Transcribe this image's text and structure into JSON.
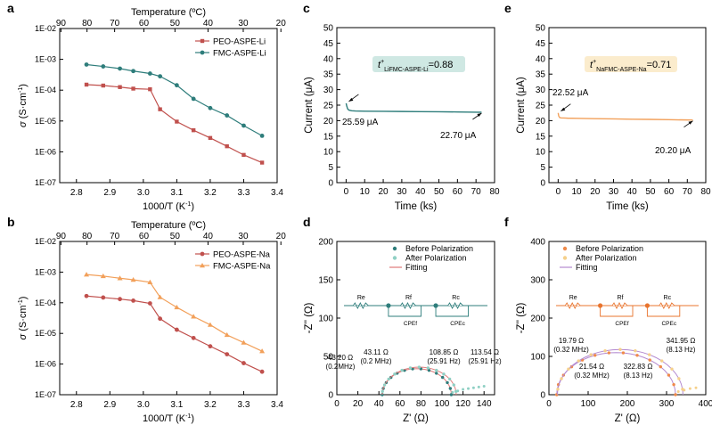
{
  "chart_data": [
    {
      "panel": "a",
      "type": "line",
      "xlabel": "1000/T (K⁻¹)",
      "ylabel": "σ (S·cm⁻¹)",
      "top_axis_label": "Temperature (ºC)",
      "top_ticks": [
        "90",
        "80",
        "70",
        "60",
        "50",
        "40",
        "30",
        "20"
      ],
      "top_tick_values": [
        90,
        80,
        70,
        60,
        50,
        40,
        30,
        20
      ],
      "xlim": [
        2.75,
        3.4
      ],
      "xticks": [
        2.8,
        2.9,
        3.0,
        3.1,
        3.2,
        3.3,
        3.4
      ],
      "xtick_labels": [
        "2.8",
        "2.9",
        "3.0",
        "3.1",
        "3.2",
        "3.3",
        "3.4"
      ],
      "ylog": [
        -7,
        -2
      ],
      "ytick_labels": [
        "1E-07",
        "1E-06",
        "1E-05",
        "1E-04",
        "1E-03",
        "1E-02"
      ],
      "legend": "top-right",
      "series": [
        {
          "name": "PEO-ASPE-Li",
          "color": "#c0504d",
          "marker": "square",
          "x": [
            2.83,
            2.88,
            2.93,
            2.97,
            3.02,
            3.05,
            3.1,
            3.15,
            3.2,
            3.25,
            3.3,
            3.355
          ],
          "log10_y": [
            -3.82,
            -3.85,
            -3.9,
            -3.95,
            -3.97,
            -4.62,
            -5.02,
            -5.3,
            -5.55,
            -5.82,
            -6.1,
            -6.35
          ]
        },
        {
          "name": "FMC-ASPE-Li",
          "color": "#2e7d7b",
          "marker": "circle",
          "x": [
            2.83,
            2.88,
            2.93,
            2.97,
            3.02,
            3.05,
            3.1,
            3.15,
            3.2,
            3.25,
            3.3,
            3.355
          ],
          "log10_y": [
            -3.17,
            -3.23,
            -3.3,
            -3.38,
            -3.46,
            -3.55,
            -3.84,
            -4.28,
            -4.58,
            -4.82,
            -5.15,
            -5.48
          ]
        }
      ]
    },
    {
      "panel": "b",
      "type": "line",
      "xlabel": "1000/T (K⁻¹)",
      "ylabel": "σ (S·cm⁻¹)",
      "top_axis_label": "Temperature (ºC)",
      "top_ticks": [
        "90",
        "80",
        "70",
        "60",
        "50",
        "40",
        "30",
        "20"
      ],
      "top_tick_values": [
        90,
        80,
        70,
        60,
        50,
        40,
        30,
        20
      ],
      "xlim": [
        2.75,
        3.4
      ],
      "xticks": [
        2.8,
        2.9,
        3.0,
        3.1,
        3.2,
        3.3,
        3.4
      ],
      "xtick_labels": [
        "2.8",
        "2.9",
        "3.0",
        "3.1",
        "3.2",
        "3.3",
        "3.4"
      ],
      "ylog": [
        -7,
        -2
      ],
      "ytick_labels": [
        "1E-07",
        "1E-06",
        "1E-05",
        "1E-04",
        "1E-03",
        "1E-02"
      ],
      "legend": "top-right",
      "series": [
        {
          "name": "PEO-ASPE-Na",
          "color": "#c0504d",
          "marker": "circle",
          "x": [
            2.83,
            2.88,
            2.93,
            2.97,
            3.02,
            3.05,
            3.1,
            3.15,
            3.2,
            3.25,
            3.3,
            3.355
          ],
          "log10_y": [
            -3.78,
            -3.83,
            -3.88,
            -3.93,
            -4.02,
            -4.52,
            -4.88,
            -5.15,
            -5.42,
            -5.68,
            -5.97,
            -6.25
          ]
        },
        {
          "name": "FMC-ASPE-Na",
          "color": "#f2a05a",
          "marker": "triangle",
          "x": [
            2.83,
            2.88,
            2.93,
            2.97,
            3.02,
            3.05,
            3.1,
            3.15,
            3.2,
            3.25,
            3.3,
            3.355
          ],
          "log10_y": [
            -3.08,
            -3.13,
            -3.2,
            -3.25,
            -3.33,
            -3.82,
            -4.15,
            -4.45,
            -4.72,
            -5.05,
            -5.3,
            -5.58
          ]
        }
      ]
    },
    {
      "panel": "c",
      "type": "line",
      "xlabel": "Time (ks)",
      "ylabel": "Current (μA)",
      "xlim": [
        -5,
        80
      ],
      "ylim": [
        0,
        50
      ],
      "xticks": [
        0,
        10,
        20,
        30,
        40,
        50,
        60,
        70,
        80
      ],
      "yticks": [
        0,
        5,
        10,
        15,
        20,
        25,
        30,
        35,
        40,
        45,
        50
      ],
      "annotation_box": "t",
      "annotation_sup": "+",
      "annotation_sub": "Li",
      "annotation_sub2": "FMC-ASPE-Li",
      "annotation_value": "=0.88",
      "box_color": "#cfe8e3",
      "line_color": "#2e7d7b",
      "labels": [
        "25.59 μA",
        "22.70 μA"
      ],
      "x": [
        0,
        0.3,
        0.8,
        1.5,
        3,
        5,
        10,
        20,
        30,
        40,
        50,
        60,
        70,
        73
      ],
      "y": [
        25.6,
        24.8,
        23.8,
        23.4,
        23.2,
        23.1,
        23.05,
        23.0,
        22.95,
        22.9,
        22.85,
        22.8,
        22.72,
        22.7
      ]
    },
    {
      "panel": "e",
      "type": "line",
      "xlabel": "Time (ks)",
      "ylabel": "Current (μA)",
      "xlim": [
        -5,
        80
      ],
      "ylim": [
        0,
        50
      ],
      "xticks": [
        0,
        10,
        20,
        30,
        40,
        50,
        60,
        70,
        80
      ],
      "yticks": [
        0,
        5,
        10,
        15,
        20,
        25,
        30,
        35,
        40,
        45,
        50
      ],
      "annotation_box": "t",
      "annotation_sup": "+",
      "annotation_sub": "Na",
      "annotation_sub2": "FMC-ASPE-Na",
      "annotation_value": "=0.71",
      "box_color": "#fbeccd",
      "line_color": "#f2a05a",
      "labels": [
        "22.52 μA",
        "20.20 μA"
      ],
      "x": [
        0,
        0.3,
        0.8,
        1.5,
        3,
        5,
        10,
        20,
        30,
        40,
        50,
        60,
        70,
        73
      ],
      "y": [
        22.5,
        21.5,
        21.0,
        20.9,
        20.85,
        20.8,
        20.75,
        20.65,
        20.55,
        20.45,
        20.4,
        20.3,
        20.22,
        20.2
      ]
    },
    {
      "panel": "d",
      "type": "scatter",
      "xlabel": "Z' (Ω)",
      "ylabel": "-Z'' (Ω)",
      "xlim": [
        0,
        150
      ],
      "ylim": [
        0,
        200
      ],
      "xticks": [
        0,
        20,
        40,
        60,
        80,
        100,
        120,
        140
      ],
      "yticks": [
        0,
        50,
        100,
        150,
        200
      ],
      "legend": [
        "Before Polarization",
        "After Polarization",
        "Fitting"
      ],
      "legend_colors": [
        "#2e7d7b",
        "#8fd0c4",
        "#e07a7a"
      ],
      "circuit_labels": [
        "Re",
        "Rf",
        "Rc",
        "CPEf",
        "CPEc"
      ],
      "circuit_color": "#2e7d7b",
      "annotations": [
        {
          "value": "43.20 Ω",
          "freq": "(0.2MHz)"
        },
        {
          "value": "43.11 Ω",
          "freq": "(0.2 MHz)"
        },
        {
          "value": "108.85 Ω",
          "freq": "(25.91 Hz)"
        },
        {
          "value": "113.54 Ω",
          "freq": "(25.91 Hz)"
        }
      ],
      "arcs": [
        {
          "name": "Before Polarization",
          "start": 43.2,
          "end": 108.85,
          "peak": 34
        },
        {
          "name": "After Polarization",
          "start": 43.11,
          "end": 113.54,
          "peak": 36
        }
      ],
      "tail": {
        "x": [
          110,
          115,
          120,
          125,
          130,
          135,
          140
        ],
        "y": [
          3,
          5,
          7,
          8,
          9,
          10,
          11
        ]
      }
    },
    {
      "panel": "f",
      "type": "scatter",
      "xlabel": "Z' (Ω)",
      "ylabel": "-Z'' (Ω)",
      "xlim": [
        0,
        400
      ],
      "ylim": [
        0,
        400
      ],
      "xticks": [
        0,
        100,
        200,
        300,
        400
      ],
      "yticks": [
        0,
        100,
        200,
        300,
        400
      ],
      "legend": [
        "Before Polarization",
        "After Polarization",
        "Fitting"
      ],
      "legend_colors": [
        "#f08a4a",
        "#f5d08a",
        "#b48ad0"
      ],
      "circuit_labels": [
        "Re",
        "Rf",
        "Rc",
        "CPEf",
        "CPEc"
      ],
      "circuit_color": "#e8742e",
      "annotations": [
        {
          "value": "19.79 Ω",
          "freq": "(0.32 MHz)"
        },
        {
          "value": "21.54 Ω",
          "freq": "(0.32 MHz)"
        },
        {
          "value": "322.83 Ω",
          "freq": "(8.13 Hz)"
        },
        {
          "value": "341.95 Ω",
          "freq": "(8.13 Hz)"
        }
      ],
      "arcs": [
        {
          "name": "Before Polarization",
          "start": 19.79,
          "end": 322.83,
          "peak": 110
        },
        {
          "name": "After Polarization",
          "start": 21.54,
          "end": 341.95,
          "peak": 118
        }
      ],
      "tail": {
        "x": [
          330,
          345,
          360,
          375
        ],
        "y": [
          8,
          12,
          16,
          18
        ]
      }
    }
  ]
}
